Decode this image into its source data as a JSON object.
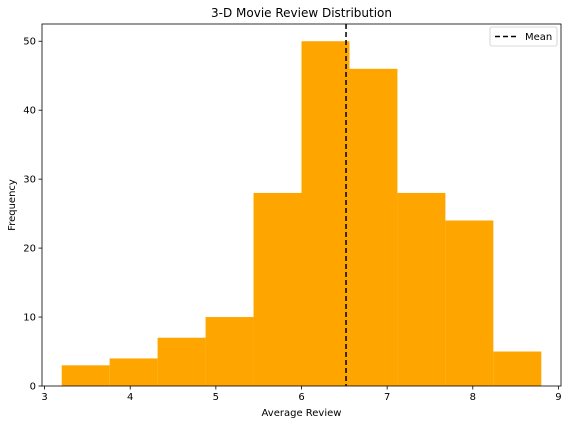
{
  "chart_data": {
    "type": "bar",
    "title": "3-D Movie Review Distribution",
    "xlabel": "Average Review",
    "ylabel": "Frequency",
    "xlim": [
      2.97,
      9.03
    ],
    "ylim": [
      0,
      52.5
    ],
    "xticks": [
      3,
      4,
      5,
      6,
      7,
      8,
      9
    ],
    "yticks": [
      0,
      10,
      20,
      30,
      40,
      50
    ],
    "bins": [
      {
        "x0": 3.2,
        "x1": 3.76,
        "count": 3
      },
      {
        "x0": 3.76,
        "x1": 4.32,
        "count": 4
      },
      {
        "x0": 4.32,
        "x1": 4.88,
        "count": 7
      },
      {
        "x0": 4.88,
        "x1": 5.44,
        "count": 10
      },
      {
        "x0": 5.44,
        "x1": 6.0,
        "count": 28
      },
      {
        "x0": 6.0,
        "x1": 6.56,
        "count": 50
      },
      {
        "x0": 6.56,
        "x1": 7.12,
        "count": 46
      },
      {
        "x0": 7.12,
        "x1": 7.68,
        "count": 28
      },
      {
        "x0": 7.68,
        "x1": 8.24,
        "count": 24
      },
      {
        "x0": 8.24,
        "x1": 8.8,
        "count": 5
      }
    ],
    "mean": 6.52,
    "legend": {
      "position": "top-right",
      "entries": [
        "Mean"
      ]
    },
    "grid": false,
    "colors": {
      "bars": "#FFA500",
      "mean_line": "#000000"
    }
  }
}
